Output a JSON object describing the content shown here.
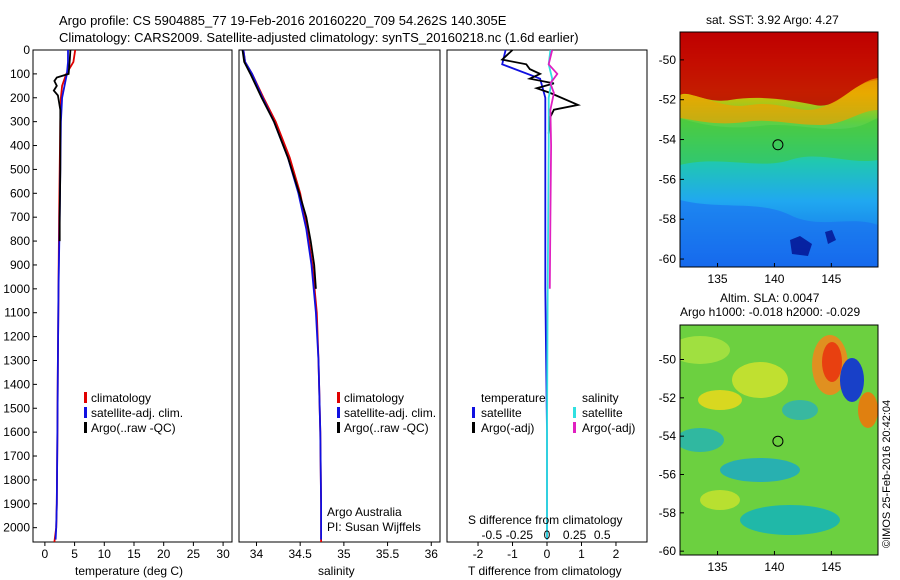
{
  "header": {
    "title_line1": "Argo profile: CS 5904885_77 19-Feb-2016 20160220_709 54.262S 140.305E",
    "title_line2": "Climatology: CARS2009. Satellite-adjusted climatology: synTS_20160218.nc (1.6d earlier)"
  },
  "colors": {
    "climatology": "#e00000",
    "satellite": "#1010e0",
    "argo": "#000000",
    "salinity_satellite": "#30e0e0",
    "salinity_argo": "#e020c0"
  },
  "chart_data": [
    {
      "name": "temperature-profile",
      "type": "line",
      "xlabel": "temperature (deg C)",
      "ylabel": "",
      "xlim": [
        -2,
        31.5
      ],
      "ylim": [
        2060,
        0
      ],
      "xticks": [
        "0",
        "5",
        "10",
        "15",
        "20",
        "25",
        "30"
      ],
      "xtick_values": [
        0,
        5,
        10,
        15,
        20,
        25,
        30
      ],
      "yticks": [
        "0",
        "100",
        "200",
        "300",
        "400",
        "500",
        "600",
        "700",
        "800",
        "900",
        "1000",
        "1100",
        "1200",
        "1300",
        "1400",
        "1500",
        "1600",
        "1700",
        "1800",
        "1900",
        "2000"
      ],
      "ytick_values": [
        0,
        100,
        200,
        300,
        400,
        500,
        600,
        700,
        800,
        900,
        1000,
        1100,
        1200,
        1300,
        1400,
        1500,
        1600,
        1700,
        1800,
        1900,
        2000
      ],
      "legend": [
        "climatology",
        "satellite-adj. clim.",
        "Argo(..raw -QC)"
      ],
      "series": [
        {
          "name": "climatology",
          "x": [
            5.1,
            4.8,
            3.6,
            2.9,
            2.7,
            2.6,
            2.5,
            2.4,
            2.3,
            2.2,
            2.1,
            2.0,
            1.9,
            1.6
          ],
          "y": [
            0,
            50,
            100,
            150,
            200,
            300,
            500,
            700,
            1000,
            1300,
            1600,
            1900,
            2000,
            2060
          ]
        },
        {
          "name": "satellite-adj. clim.",
          "x": [
            3.9,
            3.9,
            3.7,
            3.3,
            2.9,
            2.7,
            2.6,
            2.5,
            2.3,
            2.2,
            2.1,
            2.0,
            1.9,
            1.8
          ],
          "y": [
            0,
            50,
            100,
            150,
            200,
            300,
            500,
            700,
            1000,
            1300,
            1600,
            1900,
            2000,
            2050
          ]
        },
        {
          "name": "Argo(..raw -QC)",
          "x": [
            4.3,
            4.2,
            4.0,
            2.0,
            1.6,
            2.0,
            1.5,
            2.2,
            2.4,
            2.6,
            2.6,
            2.6,
            2.5,
            2.5
          ],
          "y": [
            0,
            40,
            100,
            115,
            130,
            150,
            170,
            190,
            220,
            250,
            300,
            500,
            700,
            800
          ]
        }
      ]
    },
    {
      "name": "salinity-profile",
      "type": "line",
      "xlabel": "salinity",
      "xlim": [
        33.8,
        36.1
      ],
      "ylim": [
        2060,
        0
      ],
      "xticks": [
        "34",
        "34.5",
        "35",
        "35.5",
        "36"
      ],
      "xtick_values": [
        34,
        34.5,
        35,
        35.5,
        36
      ],
      "legend": [
        "climatology",
        "satellite-adj. clim.",
        "Argo(..raw -QC)"
      ],
      "annotation": [
        "Argo Australia",
        "PI: Susan Wijffels"
      ],
      "series": [
        {
          "name": "climatology",
          "x": [
            33.85,
            33.87,
            33.95,
            34.08,
            34.22,
            34.38,
            34.5,
            34.58,
            34.64,
            34.69,
            34.71,
            34.73,
            34.74,
            34.74
          ],
          "y": [
            0,
            50,
            100,
            200,
            300,
            450,
            600,
            750,
            900,
            1100,
            1300,
            1600,
            1900,
            2060
          ]
        },
        {
          "name": "satellite-adj. clim.",
          "x": [
            33.85,
            33.87,
            33.95,
            34.07,
            34.2,
            34.36,
            34.48,
            34.57,
            34.63,
            34.68,
            34.71,
            34.73,
            34.74,
            34.74
          ],
          "y": [
            0,
            50,
            100,
            200,
            300,
            450,
            600,
            750,
            900,
            1100,
            1300,
            1600,
            1900,
            2050
          ]
        },
        {
          "name": "Argo(..raw -QC)",
          "x": [
            33.84,
            33.86,
            33.93,
            34.06,
            34.2,
            34.36,
            34.49,
            34.57,
            34.62,
            34.66,
            34.68
          ],
          "y": [
            0,
            50,
            100,
            200,
            300,
            450,
            600,
            700,
            800,
            900,
            1000
          ]
        }
      ]
    },
    {
      "name": "difference-profile",
      "type": "line",
      "xlabel": "T difference from climatology",
      "xlabel_top": "S difference from climatology",
      "xlim": [
        -2.9,
        2.9
      ],
      "ylim": [
        2060,
        0
      ],
      "xticks": [
        "-2",
        "-1",
        "0",
        "1",
        "2"
      ],
      "xtick_values": [
        -2,
        -1,
        0,
        1,
        2
      ],
      "xticks_top": [
        "-0.5",
        "-0.25",
        "0",
        "0.25",
        "0.5"
      ],
      "xtick_values_top": [
        -1.6,
        -0.8,
        0,
        0.8,
        1.6
      ],
      "legend_temperature": [
        "temperature",
        "satellite",
        "Argo(-adj)"
      ],
      "legend_salinity": [
        "salinity",
        "satellite",
        "Argo(-adj)"
      ],
      "series": [
        {
          "name": "T satellite",
          "x": [
            -1.2,
            -1.3,
            -0.2,
            -0.05,
            -0.05,
            -0.05,
            0.0,
            0.0
          ],
          "y": [
            0,
            60,
            120,
            200,
            400,
            1000,
            1600,
            2050
          ]
        },
        {
          "name": "T Argo(-adj)",
          "x": [
            -1.0,
            -1.3,
            -0.6,
            -0.5,
            -0.2,
            -0.5,
            0.2,
            -0.3,
            0.1,
            0.9,
            0.2,
            0.1,
            0.05
          ],
          "y": [
            0,
            40,
            60,
            80,
            100,
            120,
            140,
            160,
            180,
            230,
            250,
            280,
            350
          ]
        },
        {
          "name": "S satellite",
          "x": [
            0.1,
            0.05,
            0.15,
            0.05,
            0.05,
            0.02,
            0.0,
            0.0
          ],
          "y": [
            0,
            60,
            120,
            200,
            400,
            1000,
            1600,
            2050
          ]
        },
        {
          "name": "S Argo(-adj)",
          "x": [
            0.15,
            0.05,
            0.3,
            0.1,
            0.2,
            0.1,
            0.12,
            0.1,
            0.08
          ],
          "y": [
            0,
            60,
            100,
            140,
            180,
            250,
            400,
            700,
            1000
          ]
        }
      ]
    },
    {
      "name": "sst-map",
      "type": "heatmap",
      "title": "sat. SST: 3.92 Argo: 4.27",
      "xticks": [
        "135",
        "140",
        "145"
      ],
      "xtick_values": [
        135,
        140,
        145
      ],
      "yticks": [
        "-50",
        "-52",
        "-54",
        "-56",
        "-58",
        "-60"
      ],
      "ytick_values": [
        -50,
        -52,
        -54,
        -56,
        -58,
        -60
      ],
      "xlim": [
        131.7,
        149.1
      ],
      "ylim": [
        -60.4,
        -48.6
      ],
      "marker": {
        "lon": 140.305,
        "lat": -54.262
      }
    },
    {
      "name": "sla-map",
      "type": "heatmap",
      "title": "Altim. SLA: 0.0047",
      "subtitle": "Argo h1000: -0.018 h2000: -0.029",
      "xticks": [
        "135",
        "140",
        "145"
      ],
      "xtick_values": [
        135,
        140,
        145
      ],
      "yticks": [
        "-50",
        "-52",
        "-54",
        "-56",
        "-58",
        "-60"
      ],
      "ytick_values": [
        -50,
        -52,
        -54,
        -56,
        -58,
        -60
      ],
      "xlim": [
        131.7,
        149.1
      ],
      "ylim": [
        -60.2,
        -48.2
      ],
      "marker": {
        "lon": 140.305,
        "lat": -54.262
      }
    }
  ],
  "credit": "©IMOS 25-Feb-2016 20:42:04"
}
